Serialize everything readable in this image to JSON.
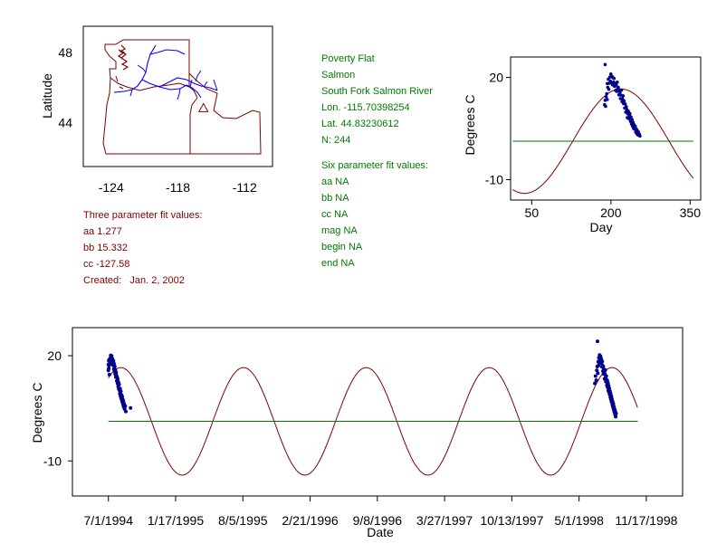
{
  "site": {
    "name": "Poverty Flat",
    "basin": "Salmon",
    "river": "South Fork Salmon River",
    "lon": "Lon. -115.70398254",
    "lat": "Lat. 44.83230612",
    "n": "N: 244"
  },
  "three_param": {
    "heading": "Three parameter fit values:",
    "aa": "aa 1.277",
    "bb": "bb 15.332",
    "cc": "cc -127.58",
    "created": "Created:   Jan. 2, 2002"
  },
  "six_param": {
    "heading": "Six parameter fit values:",
    "aa": "aa NA",
    "bb": "bb NA",
    "cc": "cc NA",
    "mag": "mag NA",
    "begin": "begin NA",
    "end": "end NA"
  },
  "colors": {
    "map_outline": "#800000",
    "rivers": "#0000ff",
    "site_marker": "#800000",
    "fit_curve": "#800000",
    "mean_line": "#007a00",
    "points": "#00008b",
    "text_green": "#007a00",
    "text_red": "#800000"
  },
  "chart_data": [
    {
      "type": "map",
      "xlabel": "",
      "ylabel": "Latitude",
      "x_ticks": [
        -124,
        -118,
        -112
      ],
      "x_tick_labels": [
        "-124",
        "-118",
        "-112"
      ],
      "y_ticks": [
        44,
        48
      ],
      "y_tick_labels": [
        "44",
        "48"
      ],
      "xlim": [
        -126.5,
        -109.5
      ],
      "ylim": [
        41.5,
        49.5
      ],
      "site_marker": {
        "lon": -115.70398254,
        "lat": 44.83230612,
        "symbol": "triangle"
      }
    },
    {
      "type": "scatter",
      "xlabel": "Day",
      "ylabel": "Degrees C",
      "xlim": [
        10,
        370
      ],
      "ylim": [
        -16,
        26
      ],
      "x_ticks": [
        50,
        200,
        350
      ],
      "x_tick_labels": [
        "50",
        "200",
        "350"
      ],
      "y_ticks": [
        -10,
        20
      ],
      "y_tick_labels": [
        "-10",
        "20"
      ],
      "fit": {
        "mean": 1.277,
        "amplitude": 15.332,
        "phase": -127.58,
        "x_range": [
          14,
          356
        ]
      },
      "mean_line": {
        "y": 1.277,
        "x_range": [
          14,
          356
        ]
      },
      "points": [
        [
          188,
          12.0
        ],
        [
          189,
          13.3
        ],
        [
          189,
          23.8
        ],
        [
          190,
          11.5
        ],
        [
          191,
          14.3
        ],
        [
          192,
          15.2
        ],
        [
          193,
          18.2
        ],
        [
          193,
          13.5
        ],
        [
          194,
          17.1
        ],
        [
          195,
          19.5
        ],
        [
          196,
          16.5
        ],
        [
          197,
          18.3
        ],
        [
          198,
          20.1
        ],
        [
          199,
          18.9
        ],
        [
          200,
          21.0
        ],
        [
          201,
          18.4
        ],
        [
          202,
          20.3
        ],
        [
          203,
          17.8
        ],
        [
          204,
          19.9
        ],
        [
          205,
          18.6
        ],
        [
          206,
          19.7
        ],
        [
          207,
          17.4
        ],
        [
          208,
          18.3
        ],
        [
          209,
          16.2
        ],
        [
          210,
          17.8
        ],
        [
          211,
          15.9
        ],
        [
          212,
          18.6
        ],
        [
          213,
          16.8
        ],
        [
          214,
          17.1
        ],
        [
          215,
          14.9
        ],
        [
          216,
          16.0
        ],
        [
          217,
          15.7
        ],
        [
          218,
          13.8
        ],
        [
          219,
          14.8
        ],
        [
          220,
          16.3
        ],
        [
          221,
          12.9
        ],
        [
          222,
          13.7
        ],
        [
          223,
          14.6
        ],
        [
          224,
          12.3
        ],
        [
          225,
          13.1
        ],
        [
          226,
          11.0
        ],
        [
          227,
          12.2
        ],
        [
          228,
          9.8
        ],
        [
          229,
          11.4
        ],
        [
          230,
          10.6
        ],
        [
          231,
          8.2
        ],
        [
          232,
          9.3
        ],
        [
          233,
          10.1
        ],
        [
          234,
          7.9
        ],
        [
          235,
          8.8
        ],
        [
          236,
          9.4
        ],
        [
          237,
          7.1
        ],
        [
          238,
          8.4
        ],
        [
          239,
          6.3
        ],
        [
          240,
          7.6
        ],
        [
          241,
          5.7
        ],
        [
          242,
          6.8
        ],
        [
          243,
          5.0
        ],
        [
          244,
          6.1
        ],
        [
          245,
          4.8
        ],
        [
          246,
          5.6
        ],
        [
          247,
          3.9
        ],
        [
          248,
          4.9
        ],
        [
          249,
          3.5
        ],
        [
          250,
          4.4
        ],
        [
          251,
          3.1
        ],
        [
          252,
          4.0
        ],
        [
          254,
          3.3
        ],
        [
          255,
          2.8
        ]
      ]
    },
    {
      "type": "scatter",
      "xlabel": "Date",
      "ylabel": "Degrees C",
      "date_origin": "1994-07-01",
      "xlim": [
        "1994-03-16",
        "1999-03-05"
      ],
      "ylim": [
        -20,
        28
      ],
      "x_ticks": [
        "1994-07-01",
        "1995-01-17",
        "1995-08-05",
        "1996-02-21",
        "1996-09-08",
        "1997-03-27",
        "1997-10-13",
        "1998-05-01",
        "1998-11-17"
      ],
      "x_tick_labels": [
        "7/1/1994",
        "1/17/1995",
        "8/5/1995",
        "2/21/1996",
        "9/8/1996",
        "3/27/1997",
        "10/13/1997",
        "5/1/1998",
        "11/17/1998"
      ],
      "y_ticks": [
        -10,
        20
      ],
      "y_tick_labels": [
        "-10",
        "20"
      ],
      "fit": {
        "mean": 1.277,
        "amplitude": 15.332,
        "phase": -127.58,
        "x_range": [
          "1994-07-01",
          "1998-10-23"
        ]
      },
      "mean_line": {
        "y": 1.277,
        "x_range": [
          "1994-07-01",
          "1998-10-23"
        ]
      },
      "points_1994": {
        "year_start": "1994-01-01",
        "doy_values": [
          [
            182,
            15.8
          ],
          [
            182,
            17.5
          ],
          [
            183,
            18.6
          ],
          [
            183,
            16.4
          ],
          [
            184,
            17.2
          ],
          [
            185,
            14.6
          ],
          [
            185,
            18.9
          ],
          [
            186,
            17.8
          ],
          [
            187,
            19.2
          ],
          [
            188,
            18.4
          ],
          [
            189,
            20.1
          ],
          [
            190,
            19.6
          ],
          [
            191,
            18.8
          ],
          [
            192,
            19.9
          ],
          [
            193,
            17.6
          ],
          [
            194,
            19.1
          ],
          [
            195,
            18.2
          ],
          [
            196,
            17.3
          ],
          [
            197,
            18.5
          ],
          [
            198,
            16.2
          ],
          [
            199,
            17.7
          ],
          [
            200,
            15.6
          ],
          [
            201,
            16.9
          ],
          [
            202,
            14.8
          ],
          [
            203,
            15.9
          ],
          [
            204,
            13.9
          ],
          [
            205,
            15.2
          ],
          [
            206,
            14.4
          ],
          [
            207,
            12.8
          ],
          [
            208,
            13.9
          ],
          [
            209,
            12.1
          ],
          [
            210,
            13.3
          ],
          [
            211,
            11.2
          ],
          [
            212,
            12.4
          ],
          [
            213,
            10.5
          ],
          [
            214,
            11.8
          ],
          [
            215,
            10.1
          ],
          [
            216,
            9.2
          ],
          [
            217,
            10.6
          ],
          [
            218,
            8.5
          ],
          [
            219,
            9.8
          ],
          [
            220,
            7.9
          ],
          [
            221,
            8.8
          ],
          [
            222,
            7.2
          ],
          [
            223,
            8.3
          ],
          [
            224,
            6.6
          ],
          [
            225,
            7.5
          ],
          [
            226,
            5.9
          ],
          [
            227,
            6.9
          ],
          [
            228,
            5.4
          ],
          [
            229,
            6.2
          ],
          [
            230,
            4.8
          ],
          [
            232,
            5.6
          ],
          [
            234,
            4.1
          ],
          [
            248,
            5.1
          ]
        ]
      },
      "points_1998": {
        "year_start": "1998-01-01",
        "doy_values": [
          [
            168,
            12.1
          ],
          [
            170,
            14.2
          ],
          [
            172,
            13.0
          ],
          [
            174,
            15.8
          ],
          [
            175,
            16.9
          ],
          [
            176,
            24.1
          ],
          [
            177,
            15.0
          ],
          [
            178,
            18.3
          ],
          [
            179,
            17.2
          ],
          [
            180,
            19.4
          ],
          [
            181,
            18.1
          ],
          [
            182,
            20.2
          ],
          [
            183,
            19.0
          ],
          [
            184,
            18.6
          ],
          [
            185,
            19.8
          ],
          [
            186,
            17.9
          ],
          [
            187,
            19.1
          ],
          [
            188,
            18.0
          ],
          [
            189,
            16.8
          ],
          [
            190,
            18.4
          ],
          [
            191,
            17.2
          ],
          [
            192,
            15.6
          ],
          [
            193,
            16.9
          ],
          [
            194,
            14.8
          ],
          [
            195,
            16.1
          ],
          [
            196,
            15.2
          ],
          [
            197,
            13.4
          ],
          [
            198,
            14.7
          ],
          [
            199,
            15.9
          ],
          [
            200,
            13.8
          ],
          [
            201,
            12.6
          ],
          [
            202,
            14.2
          ],
          [
            203,
            13.1
          ],
          [
            204,
            11.6
          ],
          [
            205,
            12.9
          ],
          [
            206,
            11.0
          ],
          [
            207,
            12.2
          ],
          [
            208,
            10.1
          ],
          [
            209,
            11.4
          ],
          [
            210,
            9.6
          ],
          [
            211,
            10.7
          ],
          [
            212,
            8.9
          ],
          [
            213,
            9.9
          ],
          [
            214,
            8.1
          ],
          [
            215,
            9.2
          ],
          [
            216,
            7.4
          ],
          [
            217,
            8.5
          ],
          [
            218,
            6.8
          ],
          [
            219,
            7.7
          ],
          [
            220,
            6.0
          ],
          [
            221,
            6.9
          ],
          [
            222,
            5.3
          ],
          [
            223,
            6.3
          ],
          [
            224,
            4.6
          ],
          [
            225,
            5.5
          ],
          [
            226,
            3.9
          ],
          [
            227,
            4.7
          ],
          [
            228,
            3.2
          ],
          [
            229,
            4.1
          ],
          [
            230,
            2.6
          ],
          [
            231,
            3.5
          ]
        ]
      }
    }
  ]
}
